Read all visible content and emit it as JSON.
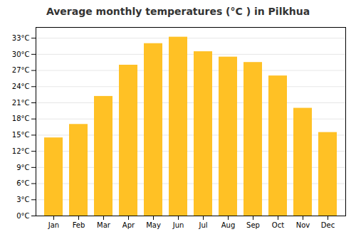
{
  "chart_data": {
    "type": "bar",
    "title": "Average monthly temperatures (°C ) in Pilkhua",
    "categories": [
      "Jan",
      "Feb",
      "Mar",
      "Apr",
      "May",
      "Jun",
      "Jul",
      "Aug",
      "Sep",
      "Oct",
      "Nov",
      "Dec"
    ],
    "values": [
      14.5,
      17.0,
      22.2,
      28.0,
      32.0,
      33.2,
      30.5,
      29.5,
      28.5,
      26.0,
      20.0,
      15.5
    ],
    "color": "#FFC125",
    "ylim": [
      0,
      35
    ],
    "yticks": [
      {
        "value": 0,
        "label": "0°C"
      },
      {
        "value": 3,
        "label": "3°C"
      },
      {
        "value": 6,
        "label": "6°C"
      },
      {
        "value": 9,
        "label": "9°C"
      },
      {
        "value": 12,
        "label": "12°C"
      },
      {
        "value": 15,
        "label": "15°C"
      },
      {
        "value": 18,
        "label": "18°C"
      },
      {
        "value": 21,
        "label": "21°C"
      },
      {
        "value": 24,
        "label": "24°C"
      },
      {
        "value": 27,
        "label": "27°C"
      },
      {
        "value": 30,
        "label": "30°C"
      },
      {
        "value": 33,
        "label": "33°C"
      }
    ],
    "grid": true
  }
}
